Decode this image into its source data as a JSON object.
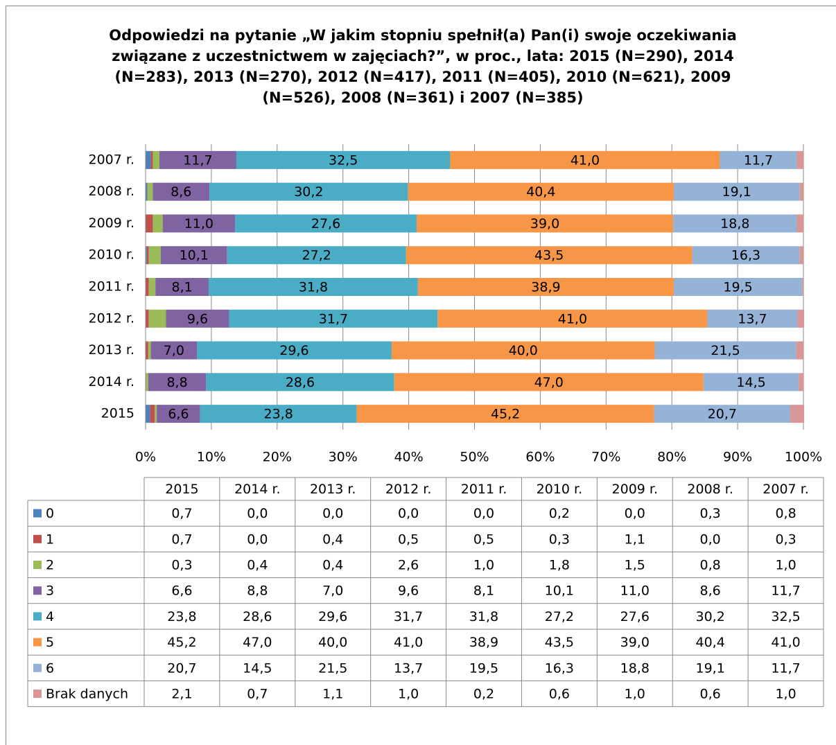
{
  "chart_data": {
    "type": "stacked-bar-horizontal",
    "title": "Odpowiedzi na pytanie „W jakim stopniu spełnił(a) Pan(i) swoje oczekiwania związane z uczestnictwem w zajęciach?”, w proc., lata: 2015 (N=290), 2014 (N=283), 2013 (N=270), 2012 (N=417), 2011 (N=405), 2010 (N=621), 2009 (N=526), 2008 (N=361) i 2007 (N=385)",
    "categories": [
      "2015",
      "2014 r.",
      "2013 r.",
      "2012 r.",
      "2011 r.",
      "2010 r.",
      "2009 r.",
      "2008 r.",
      "2007 r."
    ],
    "xlim": [
      0,
      100
    ],
    "xticks": [
      {
        "value": 0,
        "label": "0%"
      },
      {
        "value": 10,
        "label": "10%"
      },
      {
        "value": 20,
        "label": "20%"
      },
      {
        "value": 30,
        "label": "30%"
      },
      {
        "value": 40,
        "label": "40%"
      },
      {
        "value": 50,
        "label": "50%"
      },
      {
        "value": 60,
        "label": "60%"
      },
      {
        "value": 70,
        "label": "70%"
      },
      {
        "value": 80,
        "label": "80%"
      },
      {
        "value": 90,
        "label": "90%"
      },
      {
        "value": 100,
        "label": "100%"
      }
    ],
    "grid": true,
    "series": [
      {
        "name": "0",
        "color": "#4f81bd",
        "values": [
          0.7,
          0,
          0,
          0,
          0,
          0.2,
          0,
          0.3,
          0.8
        ],
        "value_labels": [
          "0,7",
          "0,0",
          "0,0",
          "0,0",
          "0,0",
          "0,2",
          "0,0",
          "0,3",
          "0,8"
        ]
      },
      {
        "name": "1",
        "color": "#c0504d",
        "values": [
          0.7,
          0,
          0.4,
          0.5,
          0.5,
          0.3,
          1.1,
          0,
          0.3
        ],
        "value_labels": [
          "0,7",
          "0,0",
          "0,4",
          "0,5",
          "0,5",
          "0,3",
          "1,1",
          "0,0",
          "0,3"
        ]
      },
      {
        "name": "2",
        "color": "#9bbb59",
        "values": [
          0.3,
          0.4,
          0.4,
          2.6,
          1.0,
          1.8,
          1.5,
          0.8,
          1.0
        ],
        "value_labels": [
          "0,3",
          "0,4",
          "0,4",
          "2,6",
          "1,0",
          "1,8",
          "1,5",
          "0,8",
          "1,0"
        ]
      },
      {
        "name": "3",
        "color": "#8064a2",
        "values": [
          6.6,
          8.8,
          7.0,
          9.6,
          8.1,
          10.1,
          11.0,
          8.6,
          11.7
        ],
        "value_labels": [
          "6,6",
          "8,8",
          "7,0",
          "9,6",
          "8,1",
          "10,1",
          "11,0",
          "8,6",
          "11,7"
        ]
      },
      {
        "name": "4",
        "color": "#4bacc6",
        "values": [
          23.8,
          28.6,
          29.6,
          31.7,
          31.8,
          27.2,
          27.6,
          30.2,
          32.5
        ],
        "value_labels": [
          "23,8",
          "28,6",
          "29,6",
          "31,7",
          "31,8",
          "27,2",
          "27,6",
          "30,2",
          "32,5"
        ]
      },
      {
        "name": "5",
        "color": "#f79646",
        "values": [
          45.2,
          47.0,
          40.0,
          41.0,
          38.9,
          43.5,
          39.0,
          40.4,
          41.0
        ],
        "value_labels": [
          "45,2",
          "47,0",
          "40,0",
          "41,0",
          "38,9",
          "43,5",
          "39,0",
          "40,4",
          "41,0"
        ]
      },
      {
        "name": "6",
        "color": "#95b3d7",
        "values": [
          20.7,
          14.5,
          21.5,
          13.7,
          19.5,
          16.3,
          18.8,
          19.1,
          11.7
        ],
        "value_labels": [
          "20,7",
          "14,5",
          "21,5",
          "13,7",
          "19,5",
          "16,3",
          "18,8",
          "19,1",
          "11,7"
        ]
      },
      {
        "name": "Brak danych",
        "color": "#d99694",
        "values": [
          2.1,
          0.7,
          1.1,
          1.0,
          0.2,
          0.6,
          1.0,
          0.6,
          1.0
        ],
        "value_labels": [
          "2,1",
          "0,7",
          "1,1",
          "1,0",
          "0,2",
          "0,6",
          "1,0",
          "0,6",
          "1,0"
        ]
      }
    ],
    "labeled_series": [
      3,
      4,
      5,
      6
    ]
  }
}
